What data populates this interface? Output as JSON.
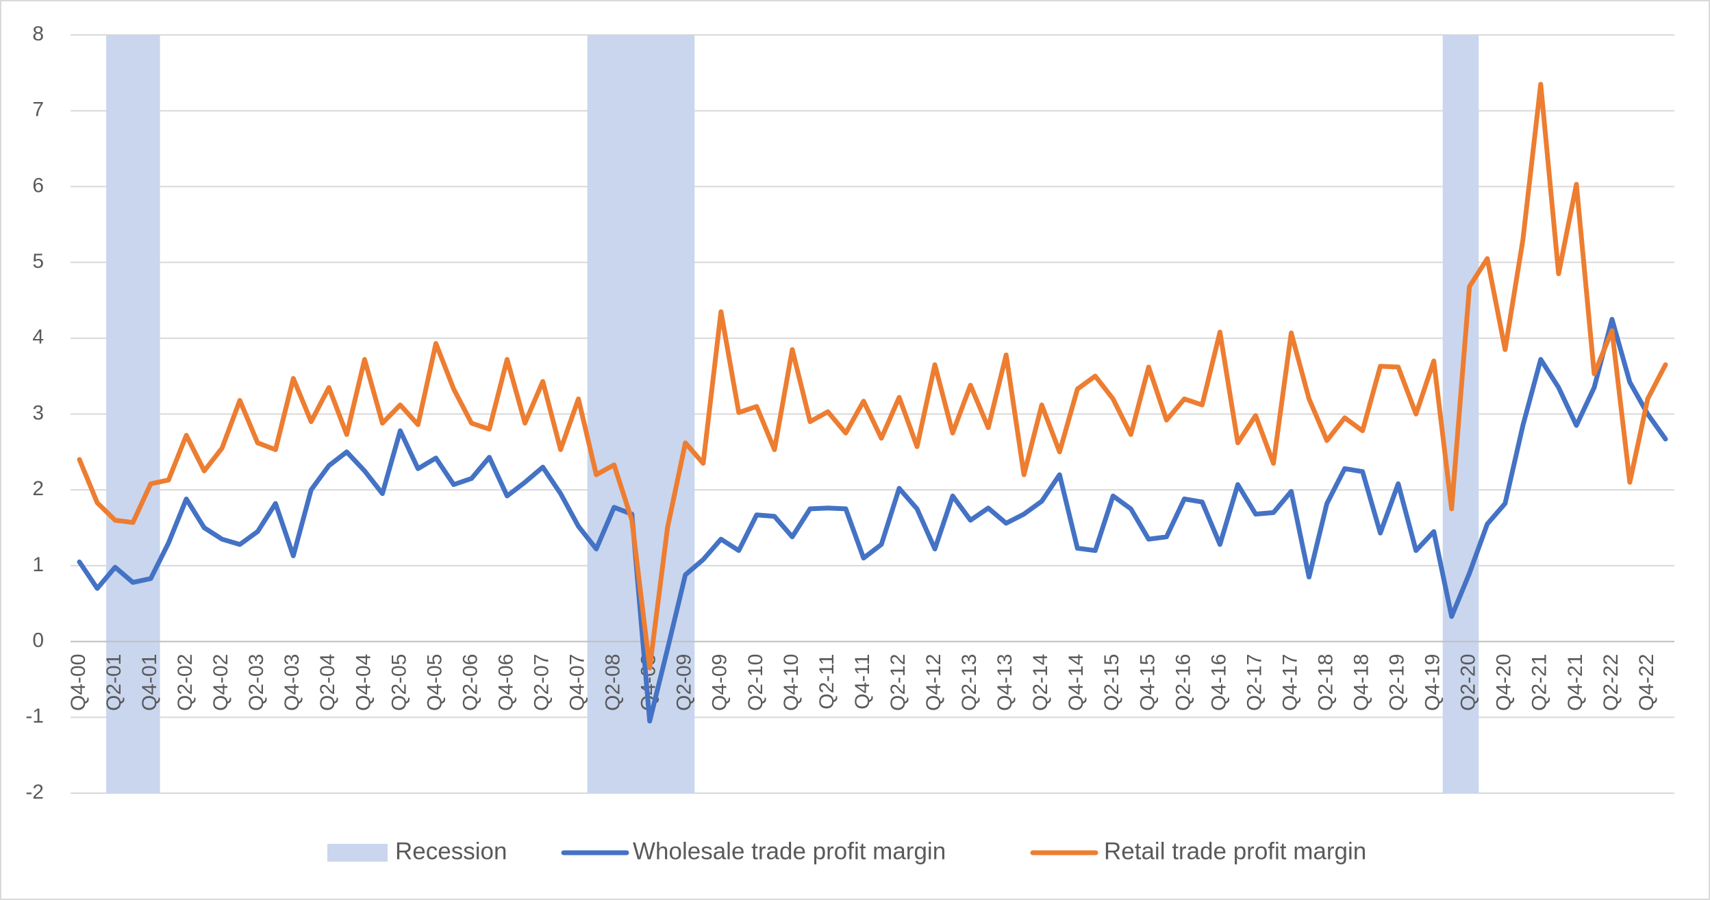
{
  "chart_data": {
    "type": "line",
    "categories": [
      "Q4-00",
      null,
      "Q2-01",
      null,
      "Q4-01",
      null,
      "Q2-02",
      null,
      "Q4-02",
      null,
      "Q2-03",
      null,
      "Q4-03",
      null,
      "Q2-04",
      null,
      "Q4-04",
      null,
      "Q2-05",
      null,
      "Q4-05",
      null,
      "Q2-06",
      null,
      "Q4-06",
      null,
      "Q2-07",
      null,
      "Q4-07",
      null,
      "Q2-08",
      null,
      "Q4-08",
      null,
      "Q2-09",
      null,
      "Q4-09",
      null,
      "Q2-10",
      null,
      "Q4-10",
      null,
      "Q2-11",
      null,
      "Q4-11",
      null,
      "Q2-12",
      null,
      "Q4-12",
      null,
      "Q2-13",
      null,
      "Q4-13",
      null,
      "Q2-14",
      null,
      "Q4-14",
      null,
      "Q2-15",
      null,
      "Q4-15",
      null,
      "Q2-16",
      null,
      "Q4-16",
      null,
      "Q2-17",
      null,
      "Q4-17",
      null,
      "Q2-18",
      null,
      "Q4-18",
      null,
      "Q2-19",
      null,
      "Q4-19",
      null,
      "Q2-20",
      null,
      "Q4-20",
      null,
      "Q2-21",
      null,
      "Q4-21",
      null,
      "Q2-22",
      null,
      "Q4-22",
      null
    ],
    "series": [
      {
        "name": "Recession",
        "type": "bar",
        "color": "#c9d6ee",
        "values": [
          null,
          null,
          8,
          8,
          8,
          null,
          null,
          null,
          null,
          null,
          null,
          null,
          null,
          null,
          null,
          null,
          null,
          null,
          null,
          null,
          null,
          null,
          null,
          null,
          null,
          null,
          null,
          null,
          null,
          8,
          8,
          8,
          8,
          8,
          8,
          null,
          null,
          null,
          null,
          null,
          null,
          null,
          null,
          null,
          null,
          null,
          null,
          null,
          null,
          null,
          null,
          null,
          null,
          null,
          null,
          null,
          null,
          null,
          null,
          null,
          null,
          null,
          null,
          null,
          null,
          null,
          null,
          null,
          null,
          null,
          null,
          null,
          null,
          null,
          null,
          null,
          null,
          8,
          8,
          null,
          null,
          null,
          null,
          null,
          null,
          null,
          null,
          null,
          null,
          null
        ]
      },
      {
        "name": "Wholesale trade profit margin",
        "type": "line",
        "color": "#4472c4",
        "values": [
          1.05,
          0.7,
          0.98,
          0.78,
          0.83,
          1.3,
          1.88,
          1.5,
          1.35,
          1.28,
          1.45,
          1.82,
          1.13,
          2.0,
          2.32,
          2.5,
          2.25,
          1.95,
          2.78,
          2.28,
          2.42,
          2.07,
          2.15,
          2.43,
          1.92,
          2.1,
          2.3,
          1.95,
          1.52,
          1.22,
          1.77,
          1.68,
          -1.05,
          -0.1,
          0.88,
          1.08,
          1.35,
          1.2,
          1.67,
          1.65,
          1.38,
          1.75,
          1.76,
          1.75,
          1.1,
          1.28,
          2.02,
          1.75,
          1.22,
          1.92,
          1.6,
          1.76,
          1.56,
          1.68,
          1.85,
          2.2,
          1.23,
          1.2,
          1.92,
          1.75,
          1.35,
          1.38,
          1.88,
          1.84,
          1.28,
          2.07,
          1.68,
          1.7,
          1.98,
          0.85,
          1.82,
          2.28,
          2.24,
          1.43,
          2.08,
          1.2,
          1.45,
          0.33,
          0.9,
          1.55,
          1.82,
          2.85,
          3.72,
          3.35,
          2.85,
          3.35,
          4.25,
          3.42,
          3.0,
          2.67
        ]
      },
      {
        "name": "Retail trade profit margin",
        "type": "line",
        "color": "#ed7d31",
        "values": [
          2.4,
          1.83,
          1.6,
          1.57,
          2.08,
          2.13,
          2.72,
          2.25,
          2.55,
          3.18,
          2.62,
          2.53,
          3.47,
          2.9,
          3.35,
          2.73,
          3.72,
          2.88,
          3.12,
          2.86,
          3.93,
          3.33,
          2.88,
          2.8,
          3.72,
          2.88,
          3.43,
          2.53,
          3.2,
          2.2,
          2.33,
          1.6,
          -0.35,
          1.5,
          2.62,
          2.35,
          4.35,
          3.02,
          3.1,
          2.53,
          3.85,
          2.9,
          3.03,
          2.75,
          3.17,
          2.68,
          3.22,
          2.57,
          3.65,
          2.75,
          3.38,
          2.82,
          3.78,
          2.2,
          3.12,
          2.5,
          3.33,
          3.5,
          3.2,
          2.73,
          3.62,
          2.92,
          3.2,
          3.12,
          4.08,
          2.62,
          2.98,
          2.35,
          4.07,
          3.2,
          2.65,
          2.95,
          2.78,
          3.63,
          3.62,
          3.0,
          3.7,
          1.75,
          4.68,
          5.05,
          3.85,
          5.3,
          7.35,
          4.85,
          6.03,
          3.53,
          4.1,
          2.1,
          3.2,
          3.65
        ]
      }
    ],
    "ylim": [
      -2,
      8
    ],
    "yticks": [
      -2,
      -1,
      0,
      1,
      2,
      3,
      4,
      5,
      6,
      7,
      8
    ],
    "grid": true,
    "legend": "bottom"
  }
}
